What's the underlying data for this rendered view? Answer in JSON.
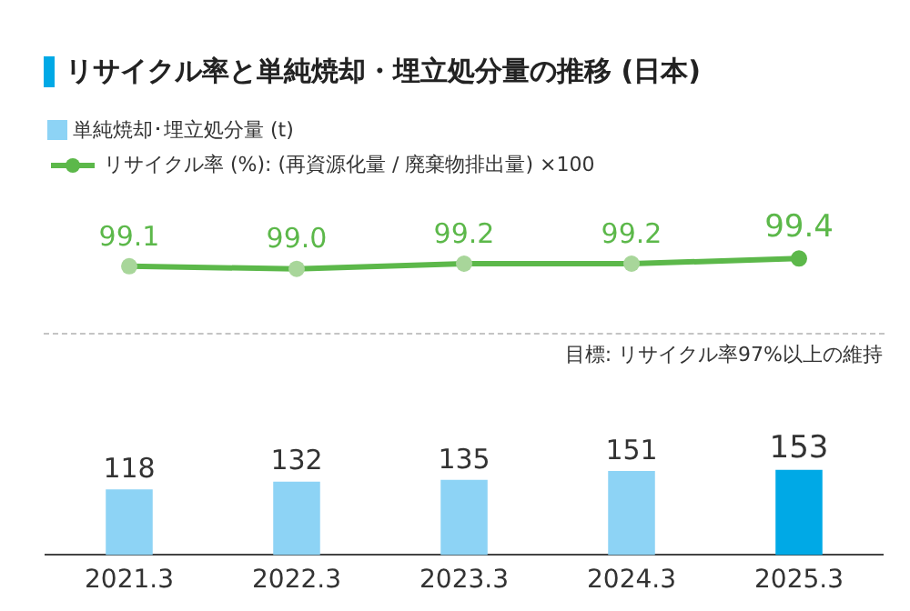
{
  "chart_data": [
    {
      "type": "line",
      "title": "リサイクル率と単純焼却・埋立処分量の推移 (日本)",
      "categories": [
        "2021.3",
        "2022.3",
        "2023.3",
        "2024.3",
        "2025.3"
      ],
      "series": [
        {
          "name": "リサイクル率 (%): (再資源化量 / 廃棄物排出量) ×100",
          "color": "#5cb84a",
          "colors": [
            "#a8d69a",
            "#a8d69a",
            "#a8d69a",
            "#a8d69a",
            "#5cb84a"
          ],
          "values": [
            99.1,
            99.0,
            99.2,
            99.2,
            99.4
          ],
          "value_labels": [
            "99.1",
            "99.0",
            "99.2",
            "99.2",
            "99.4"
          ]
        }
      ],
      "annotations": [
        "目標: リサイクル率97%以上の維持"
      ],
      "legend": "top left",
      "marker": "circle",
      "tick_labels": false,
      "grid": false
    },
    {
      "type": "bar",
      "categories": [
        "2021.3",
        "2022.3",
        "2023.3",
        "2024.3",
        "2025.3"
      ],
      "series": [
        {
          "name": "単純焼却･埋立処分量 (t)",
          "color": "#8dd3f5",
          "colors": [
            "#8dd3f5",
            "#8dd3f5",
            "#8dd3f5",
            "#8dd3f5",
            "#00a9e6"
          ],
          "values": [
            118,
            132,
            135,
            151,
            153
          ]
        }
      ],
      "data_labels": true,
      "legend": "top left",
      "tick_labels": "x",
      "grid": false
    }
  ]
}
